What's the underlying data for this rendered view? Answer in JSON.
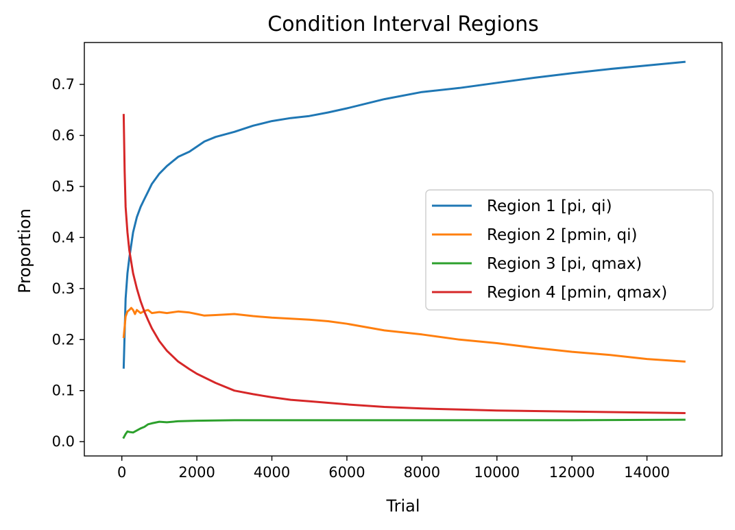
{
  "chart_data": {
    "type": "line",
    "title": "Condition Interval Regions",
    "xlabel": "Trial",
    "ylabel": "Proportion",
    "xlim": [
      -1000,
      16000
    ],
    "ylim": [
      -0.028,
      0.782
    ],
    "xticks": [
      0,
      2000,
      4000,
      6000,
      8000,
      10000,
      12000,
      14000
    ],
    "xtick_labels": [
      "0",
      "2000",
      "4000",
      "6000",
      "8000",
      "10000",
      "12000",
      "14000"
    ],
    "yticks": [
      0.0,
      0.1,
      0.2,
      0.3,
      0.4,
      0.5,
      0.6,
      0.7
    ],
    "ytick_labels": [
      "0.0",
      "0.1",
      "0.2",
      "0.3",
      "0.4",
      "0.5",
      "0.6",
      "0.7"
    ],
    "grid": false,
    "legend_position": "right",
    "series": [
      {
        "name": "Region 1 [pi, qi)",
        "color": "#1f77b4",
        "x": [
          50,
          100,
          150,
          200,
          300,
          400,
          500,
          600,
          700,
          800,
          1000,
          1200,
          1500,
          1800,
          2000,
          2200,
          2500,
          3000,
          3500,
          4000,
          4500,
          5000,
          5500,
          6000,
          7000,
          8000,
          9000,
          10000,
          11000,
          12000,
          13000,
          14000,
          15000
        ],
        "y": [
          0.145,
          0.28,
          0.33,
          0.36,
          0.41,
          0.44,
          0.46,
          0.475,
          0.49,
          0.505,
          0.525,
          0.54,
          0.558,
          0.568,
          0.578,
          0.588,
          0.597,
          0.607,
          0.619,
          0.628,
          0.634,
          0.638,
          0.645,
          0.653,
          0.671,
          0.685,
          0.693,
          0.703,
          0.713,
          0.722,
          0.73,
          0.737,
          0.744
        ]
      },
      {
        "name": "Region 2 [pmin, qi)",
        "color": "#ff7f0e",
        "x": [
          50,
          100,
          150,
          200,
          250,
          300,
          350,
          400,
          500,
          600,
          700,
          800,
          1000,
          1200,
          1500,
          1800,
          2000,
          2200,
          2500,
          3000,
          3500,
          4000,
          4500,
          5000,
          5500,
          6000,
          7000,
          8000,
          9000,
          10000,
          11000,
          12000,
          13000,
          14000,
          15000
        ],
        "y": [
          0.205,
          0.245,
          0.255,
          0.258,
          0.262,
          0.258,
          0.25,
          0.258,
          0.252,
          0.256,
          0.258,
          0.252,
          0.254,
          0.252,
          0.255,
          0.253,
          0.25,
          0.247,
          0.248,
          0.25,
          0.246,
          0.243,
          0.241,
          0.239,
          0.236,
          0.231,
          0.218,
          0.21,
          0.2,
          0.193,
          0.184,
          0.176,
          0.17,
          0.162,
          0.157
        ]
      },
      {
        "name": "Region 3 [pi, qmax)",
        "color": "#2ca02c",
        "x": [
          50,
          100,
          150,
          200,
          300,
          400,
          500,
          600,
          700,
          800,
          1000,
          1200,
          1500,
          2000,
          3000,
          4000,
          6000,
          8000,
          10000,
          12000,
          15000
        ],
        "y": [
          0.008,
          0.015,
          0.02,
          0.019,
          0.018,
          0.022,
          0.026,
          0.029,
          0.034,
          0.036,
          0.039,
          0.038,
          0.04,
          0.041,
          0.042,
          0.042,
          0.042,
          0.042,
          0.042,
          0.042,
          0.043
        ]
      },
      {
        "name": "Region 4 [pmin, qmax)",
        "color": "#d62728",
        "x": [
          50,
          75,
          100,
          150,
          200,
          300,
          400,
          500,
          600,
          700,
          800,
          1000,
          1200,
          1500,
          1800,
          2000,
          2500,
          3000,
          3500,
          4000,
          4500,
          5000,
          6000,
          7000,
          8000,
          9000,
          10000,
          11000,
          12000,
          13000,
          14000,
          15000
        ],
        "y": [
          0.64,
          0.53,
          0.46,
          0.41,
          0.375,
          0.33,
          0.3,
          0.275,
          0.255,
          0.238,
          0.222,
          0.197,
          0.178,
          0.157,
          0.142,
          0.133,
          0.115,
          0.1,
          0.093,
          0.087,
          0.082,
          0.079,
          0.073,
          0.068,
          0.065,
          0.063,
          0.061,
          0.06,
          0.059,
          0.058,
          0.057,
          0.056
        ]
      }
    ]
  }
}
